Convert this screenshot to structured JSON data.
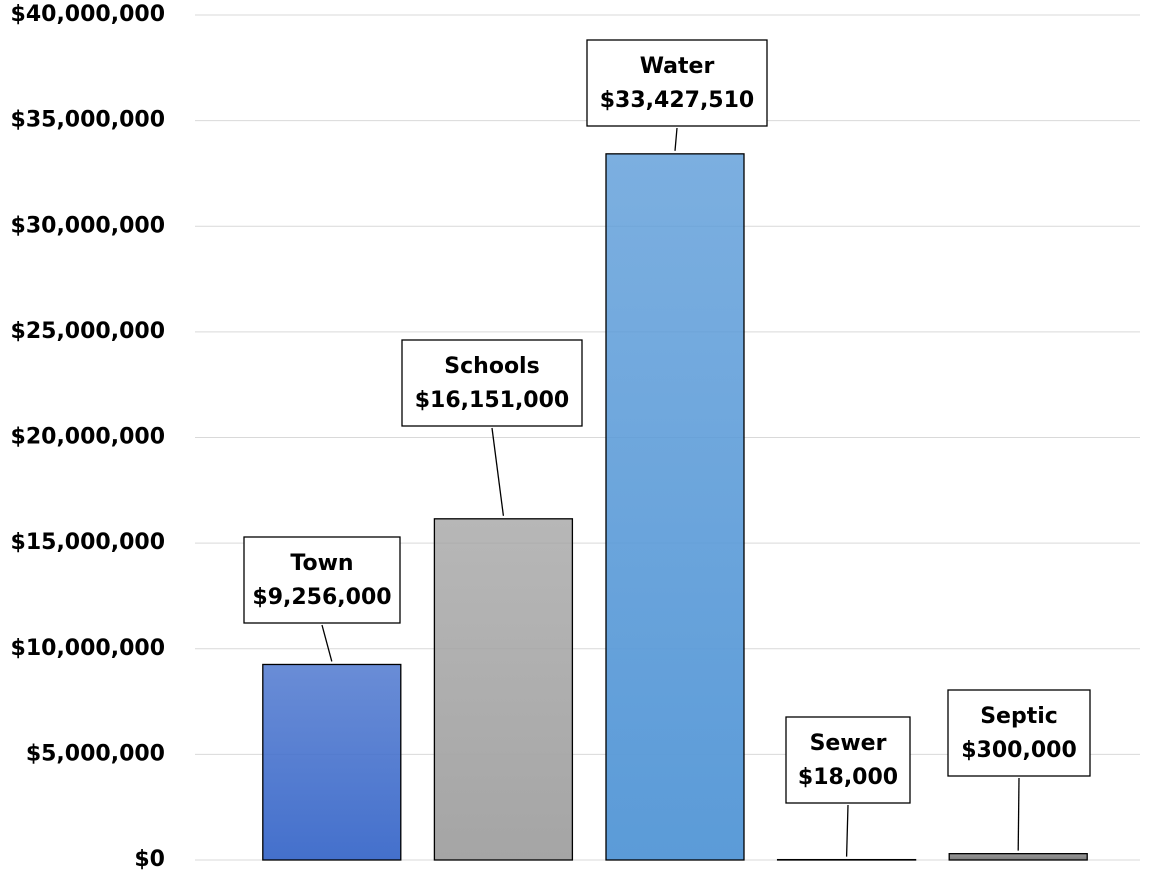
{
  "chart_data": {
    "type": "bar",
    "categories": [
      "Town",
      "Schools",
      "Water",
      "Sewer",
      "Septic"
    ],
    "values": [
      9256000,
      16151000,
      33427510,
      18000,
      300000
    ],
    "value_labels": [
      "$9,256,000",
      "$16,151,000",
      "$33,427,510",
      "$18,000",
      "$300,000"
    ],
    "colors": [
      "#4470cc",
      "#a5a5a5",
      "#5b9bd8",
      "#4f7fd0",
      "#7f7f7f"
    ],
    "ylim": [
      0,
      40000000
    ],
    "yticks": [
      {
        "value": 0,
        "label": "$0"
      },
      {
        "value": 5000000,
        "label": "$5,000,000"
      },
      {
        "value": 10000000,
        "label": "$10,000,000"
      },
      {
        "value": 15000000,
        "label": "$15,000,000"
      },
      {
        "value": 20000000,
        "label": "$20,000,000"
      },
      {
        "value": 25000000,
        "label": "$25,000,000"
      },
      {
        "value": 30000000,
        "label": "$30,000,000"
      },
      {
        "value": 35000000,
        "label": "$35,000,000"
      },
      {
        "value": 40000000,
        "label": "$40,000,000"
      }
    ],
    "grid": true
  }
}
